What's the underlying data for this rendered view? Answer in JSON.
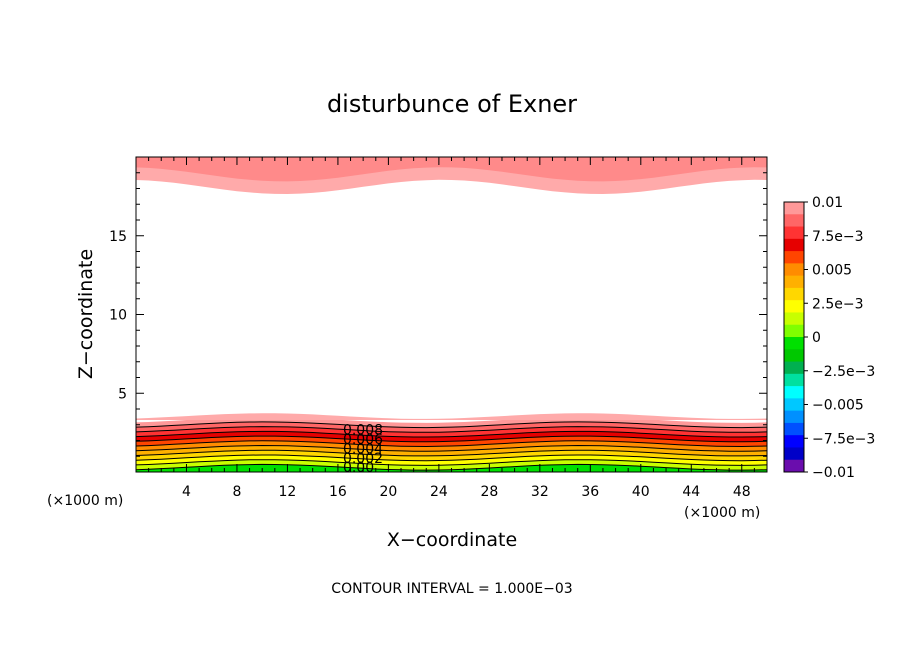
{
  "chart_data": {
    "type": "heatmap",
    "title": "disturbunce of Exner",
    "xlabel": "X−coordinate",
    "ylabel": "Z−coordinate",
    "x_unit_left": "(×1000 m)",
    "x_unit_right": "(×1000 m)",
    "xlim": [
      0,
      50
    ],
    "ylim": [
      0,
      20
    ],
    "x_ticks": [
      4,
      8,
      12,
      16,
      20,
      24,
      28,
      32,
      36,
      40,
      44,
      48
    ],
    "y_ticks": [
      5,
      10,
      15
    ],
    "contour_interval_text": "CONTOUR INTERVAL = 1.000E−03",
    "contour_labels": [
      "0.008",
      "0.006",
      "0.004",
      "0.002",
      "0.00"
    ],
    "colorbar": {
      "vmin": -0.01,
      "vmax": 0.01,
      "tick_labels": [
        "0.01",
        "7.5e−3",
        "0.005",
        "2.5e−3",
        "0",
        "−2.5e−3",
        "−0.005",
        "−7.5e−3",
        "−0.01"
      ],
      "colors": [
        "#ff9999",
        "#ff6666",
        "#ff3333",
        "#e60000",
        "#ff4500",
        "#ff8c00",
        "#ffb000",
        "#ffd700",
        "#ffff00",
        "#c8ff00",
        "#80ff00",
        "#00e000",
        "#00c800",
        "#00b050",
        "#00e0a0",
        "#00ffff",
        "#00c8ff",
        "#0090ff",
        "#0050ff",
        "#0000ff",
        "#0000c8",
        "#6a0dad"
      ]
    },
    "top_band": {
      "z_top": 20,
      "z_bottom_approx": [
        18.4,
        17.7,
        18.2,
        18.6
      ]
    },
    "bottom_layers": [
      {
        "z_top": 3.3,
        "value": 0.01
      },
      {
        "z_top": 3.0,
        "value": 0.009
      },
      {
        "z_top": 2.7,
        "value": 0.008
      },
      {
        "z_top": 2.4,
        "value": 0.007
      },
      {
        "z_top": 2.1,
        "value": 0.006
      },
      {
        "z_top": 1.8,
        "value": 0.005
      },
      {
        "z_top": 1.5,
        "value": 0.004
      },
      {
        "z_top": 1.2,
        "value": 0.003
      },
      {
        "z_top": 0.9,
        "value": 0.002
      },
      {
        "z_top": 0.6,
        "value": 0.001
      },
      {
        "z_top": 0.3,
        "value": 0.0
      }
    ]
  }
}
